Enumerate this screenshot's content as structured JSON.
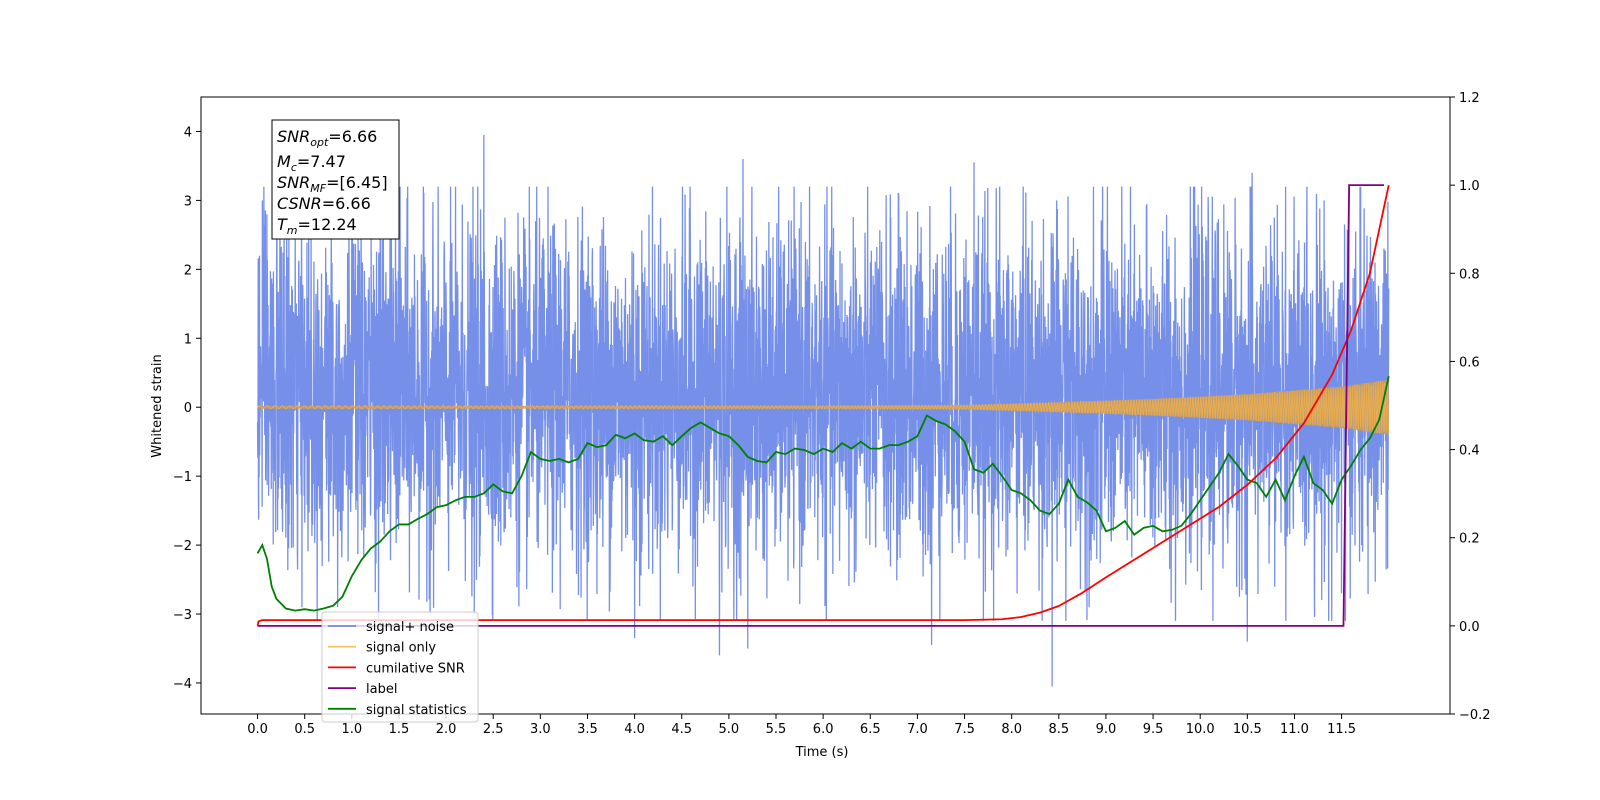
{
  "chart_data": {
    "type": "line",
    "xlabel": "Time (s)",
    "ylabel": "Whitened strain",
    "xlim": [
      -0.6,
      12.65
    ],
    "ylim": [
      -4.45,
      4.5
    ],
    "y2lim": [
      -0.2,
      1.2
    ],
    "x_ticks": [
      0.0,
      0.5,
      1.0,
      1.5,
      2.0,
      2.5,
      3.0,
      3.5,
      4.0,
      4.5,
      5.0,
      5.5,
      6.0,
      6.5,
      7.0,
      7.5,
      8.0,
      8.5,
      9.0,
      9.5,
      10.0,
      10.5,
      11.0,
      11.5
    ],
    "x_tick_labels": [
      "0.0",
      "0.5",
      "1.0",
      "1.5",
      "2.0",
      "2.5",
      "3.0",
      "3.5",
      "4.0",
      "4.5",
      "5.0",
      "5.5",
      "6.0",
      "6.5",
      "7.0",
      "7.5",
      "8.0",
      "8.5",
      "9.0",
      "9.5",
      "10.0",
      "10.5",
      "11.0",
      "11.5"
    ],
    "y_ticks": [
      -4,
      -3,
      -2,
      -1,
      0,
      1,
      2,
      3,
      4
    ],
    "y_tick_labels": [
      "−4",
      "−3",
      "−2",
      "−1",
      "0",
      "1",
      "2",
      "3",
      "4"
    ],
    "y2_ticks": [
      -0.2,
      0.0,
      0.2,
      0.4,
      0.6,
      0.8,
      1.0,
      1.2
    ],
    "y2_tick_labels": [
      "−0.2",
      "0.0",
      "0.2",
      "0.4",
      "0.6",
      "0.8",
      "1.0",
      "1.2"
    ],
    "grid": false,
    "legend_position": "lower-left",
    "colors": {
      "signal_noise": "#6f8ae8",
      "signal_only": "#f5b342",
      "signal_only_fill": "#c29a6a",
      "cumulative_snr": "#ff0000",
      "label": "#800080",
      "signal_statistics": "#008000"
    },
    "annotation_box": {
      "lines": [
        {
          "sym": "SNR",
          "sub": "opt",
          "val": "=6.66"
        },
        {
          "sym": "M",
          "sub": "c",
          "val": "=7.47"
        },
        {
          "sym": "SNR",
          "sub": "MF",
          "val": "=[6.45]"
        },
        {
          "sym": "CSNR",
          "sub": "",
          "val": "=6.66"
        },
        {
          "sym": "T",
          "sub": "m",
          "val": "=12.24"
        }
      ]
    },
    "series": [
      {
        "name": "signal+ noise",
        "axis": "left",
        "x_range": [
          0.0,
          12.0
        ],
        "typical_range": [
          -2.0,
          2.4
        ],
        "peaks": [
          {
            "x": 0.05,
            "y": 3.0
          },
          {
            "x": 0.1,
            "y": 2.8
          },
          {
            "x": 2.4,
            "y": 3.95
          },
          {
            "x": 1.5,
            "y": 3.1
          },
          {
            "x": 5.15,
            "y": 3.6
          },
          {
            "x": 7.6,
            "y": 3.55
          },
          {
            "x": 10.55,
            "y": 3.4
          },
          {
            "x": 11.95,
            "y": 2.3
          },
          {
            "x": 8.43,
            "y": -4.05
          },
          {
            "x": 4.9,
            "y": -3.6
          },
          {
            "x": 10.5,
            "y": -3.4
          },
          {
            "x": 5.2,
            "y": -3.5
          },
          {
            "x": 4.0,
            "y": -3.35
          },
          {
            "x": 7.15,
            "y": -3.45
          },
          {
            "x": 0.85,
            "y": -2.9
          },
          {
            "x": 2.3,
            "y": -3.0
          },
          {
            "x": 11.5,
            "y": -2.7
          }
        ]
      },
      {
        "name": "signal only",
        "axis": "left",
        "x_range": [
          0.0,
          12.0
        ],
        "amplitude_start": 0.02,
        "amplitude_end": 0.4,
        "envelope": [
          [
            0.0,
            0.02
          ],
          [
            6.0,
            0.02
          ],
          [
            7.5,
            0.03
          ],
          [
            8.5,
            0.07
          ],
          [
            9.5,
            0.12
          ],
          [
            10.5,
            0.19
          ],
          [
            11.5,
            0.3
          ],
          [
            12.0,
            0.4
          ]
        ]
      },
      {
        "name": "cumilative SNR",
        "axis": "right",
        "x": [
          0.0,
          0.01,
          0.05,
          7.5,
          7.9,
          8.1,
          8.3,
          8.5,
          8.75,
          9.0,
          9.3,
          9.6,
          9.9,
          10.2,
          10.5,
          10.8,
          11.1,
          11.4,
          11.6,
          11.8,
          12.0
        ],
        "values": [
          0.0,
          0.01,
          0.013,
          0.013,
          0.015,
          0.02,
          0.03,
          0.045,
          0.075,
          0.11,
          0.15,
          0.19,
          0.23,
          0.27,
          0.32,
          0.38,
          0.46,
          0.57,
          0.67,
          0.8,
          1.0
        ]
      },
      {
        "name": "label",
        "axis": "right",
        "x": [
          0.0,
          11.52,
          11.58,
          11.95
        ],
        "values": [
          0.0,
          0.0,
          1.0,
          1.0
        ]
      },
      {
        "name": "signal statistics",
        "axis": "left",
        "x": [
          0.0,
          0.05,
          0.1,
          0.15,
          0.2,
          0.3,
          0.4,
          0.5,
          0.6,
          0.7,
          0.8,
          0.9,
          1.0,
          1.1,
          1.2,
          1.3,
          1.4,
          1.5,
          1.6,
          1.7,
          1.8,
          1.9,
          2.0,
          2.1,
          2.2,
          2.3,
          2.4,
          2.5,
          2.6,
          2.7,
          2.8,
          2.9,
          3.0,
          3.1,
          3.2,
          3.3,
          3.4,
          3.5,
          3.6,
          3.7,
          3.8,
          3.9,
          4.0,
          4.1,
          4.2,
          4.3,
          4.4,
          4.5,
          4.6,
          4.7,
          4.8,
          4.9,
          5.0,
          5.1,
          5.2,
          5.3,
          5.4,
          5.5,
          5.6,
          5.7,
          5.8,
          5.9,
          6.0,
          6.1,
          6.2,
          6.3,
          6.4,
          6.5,
          6.6,
          6.7,
          6.8,
          6.9,
          7.0,
          7.1,
          7.2,
          7.3,
          7.4,
          7.5,
          7.6,
          7.7,
          7.8,
          7.9,
          8.0,
          8.1,
          8.2,
          8.3,
          8.4,
          8.5,
          8.6,
          8.7,
          8.8,
          8.9,
          9.0,
          9.1,
          9.2,
          9.3,
          9.4,
          9.5,
          9.6,
          9.7,
          9.8,
          9.9,
          10.0,
          10.1,
          10.2,
          10.3,
          10.4,
          10.5,
          10.6,
          10.7,
          10.8,
          10.9,
          11.0,
          11.1,
          11.2,
          11.3,
          11.4,
          11.5,
          11.6,
          11.7,
          11.8,
          11.9,
          12.0
        ],
        "values": [
          -2.12,
          -2.0,
          -2.2,
          -2.6,
          -2.78,
          -2.92,
          -2.95,
          -2.93,
          -2.95,
          -2.92,
          -2.88,
          -2.75,
          -2.45,
          -2.22,
          -2.05,
          -1.95,
          -1.8,
          -1.7,
          -1.7,
          -1.62,
          -1.55,
          -1.45,
          -1.42,
          -1.35,
          -1.3,
          -1.3,
          -1.25,
          -1.12,
          -1.22,
          -1.25,
          -1.0,
          -0.65,
          -0.75,
          -0.78,
          -0.75,
          -0.8,
          -0.75,
          -0.52,
          -0.58,
          -0.55,
          -0.4,
          -0.45,
          -0.38,
          -0.48,
          -0.5,
          -0.42,
          -0.55,
          -0.42,
          -0.3,
          -0.22,
          -0.3,
          -0.38,
          -0.42,
          -0.55,
          -0.72,
          -0.78,
          -0.8,
          -0.65,
          -0.68,
          -0.6,
          -0.62,
          -0.68,
          -0.6,
          -0.65,
          -0.52,
          -0.6,
          -0.5,
          -0.6,
          -0.6,
          -0.55,
          -0.55,
          -0.5,
          -0.42,
          -0.12,
          -0.2,
          -0.25,
          -0.35,
          -0.5,
          -0.9,
          -0.95,
          -0.82,
          -1.0,
          -1.2,
          -1.25,
          -1.35,
          -1.5,
          -1.55,
          -1.4,
          -1.05,
          -1.3,
          -1.38,
          -1.5,
          -1.8,
          -1.75,
          -1.65,
          -1.85,
          -1.75,
          -1.72,
          -1.8,
          -1.78,
          -1.72,
          -1.55,
          -1.35,
          -1.15,
          -0.95,
          -0.68,
          -0.85,
          -1.05,
          -1.1,
          -1.3,
          -1.05,
          -1.35,
          -1.0,
          -0.72,
          -1.1,
          -1.2,
          -1.4,
          -1.05,
          -0.85,
          -0.62,
          -0.45,
          -0.18,
          0.45
        ]
      }
    ]
  }
}
